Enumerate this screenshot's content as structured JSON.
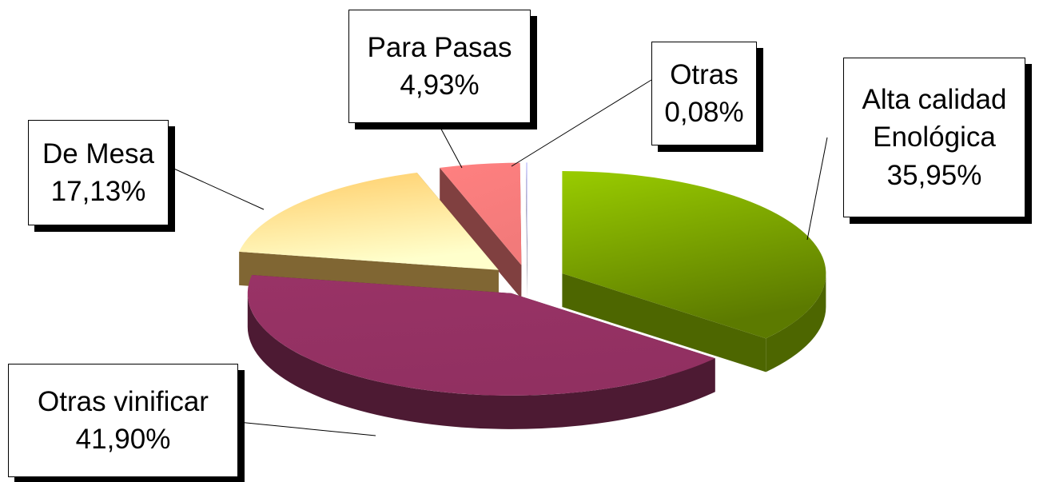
{
  "chart_data": {
    "type": "pie3d",
    "categories": [
      "Alta calidad Enológica",
      "Otras vinificar",
      "De Mesa",
      "Para Pasas",
      "Otras"
    ],
    "values": [
      35.95,
      41.9,
      17.13,
      4.93,
      0.08
    ],
    "value_labels": [
      "35,95%",
      "41,90%",
      "17,13%",
      "4,93%",
      "0,08%"
    ],
    "colors": [
      "#99cc00",
      "#993366",
      "#ffcc66",
      "#ff8080",
      "#ccccff"
    ]
  }
}
